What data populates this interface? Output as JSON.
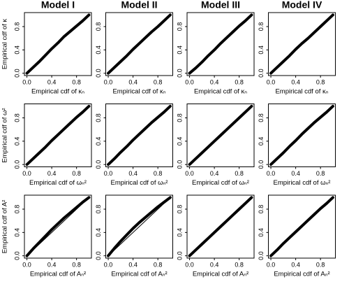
{
  "chart_data": [
    {
      "type": "line",
      "title": "Model I",
      "ylabel": "Empirical cdf of κ",
      "xlabel": "Empirical cdf of κₙ",
      "xlim": [
        -0.04,
        1.04
      ],
      "ylim": [
        -0.04,
        1.04
      ],
      "xticks": [
        {
          "value": 0,
          "label": "0.0"
        },
        0.4,
        0.8
      ],
      "yticks": [
        {
          "value": 0,
          "label": "0.0"
        },
        0.4,
        0.8
      ],
      "series": [
        {
          "color": "#000000",
          "linewidth": 4,
          "x": [
            0,
            0.1,
            0.2,
            0.3,
            0.4,
            0.5,
            0.6,
            0.7,
            0.8,
            0.9,
            1
          ],
          "values": [
            0,
            0.1,
            0.2,
            0.31,
            0.42,
            0.52,
            0.63,
            0.72,
            0.81,
            0.9,
            1
          ]
        }
      ]
    },
    {
      "type": "line",
      "title": "Model II",
      "xlabel": "Empirical cdf of κₙ",
      "xlim": [
        -0.04,
        1.04
      ],
      "ylim": [
        -0.04,
        1.04
      ],
      "xticks": [
        {
          "value": 0,
          "label": "0.0"
        },
        0.4,
        0.8
      ],
      "yticks": [
        {
          "value": 0,
          "label": "0.0"
        },
        0.4,
        0.8
      ],
      "series": [
        {
          "color": "#000000",
          "linewidth": 4,
          "x": [
            0,
            0.1,
            0.2,
            0.3,
            0.4,
            0.5,
            0.6,
            0.7,
            0.8,
            0.9,
            1
          ],
          "values": [
            0,
            0.1,
            0.2,
            0.3,
            0.41,
            0.51,
            0.61,
            0.71,
            0.8,
            0.9,
            1
          ]
        }
      ]
    },
    {
      "type": "line",
      "title": "Model III",
      "xlabel": "Empirical cdf of κₙ",
      "xlim": [
        -0.04,
        1.04
      ],
      "ylim": [
        -0.04,
        1.04
      ],
      "xticks": [
        {
          "value": 0,
          "label": "0.0"
        },
        0.4,
        0.8
      ],
      "yticks": [
        {
          "value": 0,
          "label": "0.0"
        },
        0.4,
        0.8
      ],
      "series": [
        {
          "color": "#000000",
          "linewidth": 4,
          "x": [
            0,
            0.1,
            0.2,
            0.3,
            0.4,
            0.5,
            0.6,
            0.7,
            0.8,
            0.9,
            1
          ],
          "values": [
            0,
            0.09,
            0.19,
            0.3,
            0.4,
            0.51,
            0.61,
            0.71,
            0.81,
            0.9,
            1
          ]
        }
      ]
    },
    {
      "type": "line",
      "title": "Model IV",
      "xlabel": "Empirical cdf of κₙ",
      "xlim": [
        -0.04,
        1.04
      ],
      "ylim": [
        -0.04,
        1.04
      ],
      "xticks": [
        {
          "value": 0,
          "label": "0.0"
        },
        0.4,
        0.8
      ],
      "yticks": [
        {
          "value": 0,
          "label": "0.0"
        },
        0.4,
        0.8
      ],
      "series": [
        {
          "color": "#000000",
          "linewidth": 4,
          "x": [
            0,
            0.1,
            0.2,
            0.3,
            0.4,
            0.5,
            0.6,
            0.7,
            0.8,
            0.9,
            1
          ],
          "values": [
            0,
            0.1,
            0.2,
            0.3,
            0.41,
            0.51,
            0.6,
            0.7,
            0.8,
            0.9,
            1
          ]
        }
      ]
    },
    {
      "type": "line",
      "ylabel": "Empirical cdf of ω²",
      "xlabel": "Empirical cdf of ωₙ²",
      "xlim": [
        -0.04,
        1.04
      ],
      "ylim": [
        -0.04,
        1.04
      ],
      "xticks": [
        {
          "value": 0,
          "label": "0.0"
        },
        0.4,
        0.8
      ],
      "yticks": [
        {
          "value": 0,
          "label": "0.0"
        },
        0.4,
        0.8
      ],
      "series": [
        {
          "color": "#000000",
          "linewidth": 4,
          "x": [
            0,
            0.1,
            0.2,
            0.3,
            0.4,
            0.5,
            0.6,
            0.7,
            0.8,
            0.9,
            1
          ],
          "values": [
            0,
            0.1,
            0.2,
            0.3,
            0.41,
            0.51,
            0.61,
            0.71,
            0.81,
            0.9,
            1
          ]
        }
      ]
    },
    {
      "type": "line",
      "xlabel": "Empirical cdf of ωₙ²",
      "xlim": [
        -0.04,
        1.04
      ],
      "ylim": [
        -0.04,
        1.04
      ],
      "xticks": [
        {
          "value": 0,
          "label": "0.0"
        },
        0.4,
        0.8
      ],
      "yticks": [
        {
          "value": 0,
          "label": "0.0"
        },
        0.4,
        0.8
      ],
      "series": [
        {
          "color": "#000000",
          "linewidth": 4,
          "x": [
            0,
            0.1,
            0.2,
            0.3,
            0.4,
            0.5,
            0.6,
            0.7,
            0.8,
            0.9,
            1
          ],
          "values": [
            0,
            0.1,
            0.21,
            0.31,
            0.42,
            0.52,
            0.62,
            0.72,
            0.81,
            0.9,
            1
          ]
        }
      ]
    },
    {
      "type": "line",
      "xlabel": "Empirical cdf of ωₙ²",
      "xlim": [
        -0.04,
        1.04
      ],
      "ylim": [
        -0.04,
        1.04
      ],
      "xticks": [
        {
          "value": 0,
          "label": "0.0"
        },
        0.4,
        0.8
      ],
      "yticks": [
        {
          "value": 0,
          "label": "0.0"
        },
        0.4,
        0.8
      ],
      "series": [
        {
          "color": "#000000",
          "linewidth": 4,
          "x": [
            0,
            0.1,
            0.2,
            0.3,
            0.4,
            0.5,
            0.6,
            0.7,
            0.8,
            0.9,
            1
          ],
          "values": [
            0,
            0.1,
            0.2,
            0.3,
            0.4,
            0.5,
            0.6,
            0.7,
            0.8,
            0.9,
            1
          ]
        }
      ]
    },
    {
      "type": "line",
      "xlabel": "Empirical cdf of ωₙ²",
      "xlim": [
        -0.04,
        1.04
      ],
      "ylim": [
        -0.04,
        1.04
      ],
      "xticks": [
        {
          "value": 0,
          "label": "0.0"
        },
        0.4,
        0.8
      ],
      "yticks": [
        {
          "value": 0,
          "label": "0.0"
        },
        0.4,
        0.8
      ],
      "series": [
        {
          "color": "#000000",
          "linewidth": 4,
          "x": [
            0,
            0.1,
            0.2,
            0.3,
            0.4,
            0.5,
            0.6,
            0.7,
            0.8,
            0.9,
            1
          ],
          "values": [
            0,
            0.1,
            0.2,
            0.31,
            0.41,
            0.52,
            0.62,
            0.72,
            0.81,
            0.9,
            1
          ]
        }
      ]
    },
    {
      "type": "line",
      "ylabel": "Empirical cdf of A²",
      "xlabel": "Empirical cdf of Aₙ²",
      "xlim": [
        -0.04,
        1.04
      ],
      "ylim": [
        -0.04,
        1.04
      ],
      "xticks": [
        {
          "value": 0,
          "label": "0.0"
        },
        0.4,
        0.8
      ],
      "yticks": [
        {
          "value": 0,
          "label": "0.0"
        },
        0.4,
        0.8
      ],
      "series": [
        {
          "color": "#000000",
          "linewidth": 1,
          "x": [
            0,
            1
          ],
          "values": [
            0,
            1
          ]
        },
        {
          "color": "#000000",
          "linewidth": 4,
          "x": [
            0,
            0.1,
            0.2,
            0.3,
            0.4,
            0.5,
            0.6,
            0.7,
            0.8,
            0.9,
            1
          ],
          "values": [
            0,
            0.12,
            0.23,
            0.34,
            0.45,
            0.55,
            0.65,
            0.74,
            0.83,
            0.92,
            1
          ]
        }
      ]
    },
    {
      "type": "line",
      "xlabel": "Empirical cdf of Aₙ²",
      "xlim": [
        -0.04,
        1.04
      ],
      "ylim": [
        -0.04,
        1.04
      ],
      "xticks": [
        {
          "value": 0,
          "label": "0.0"
        },
        0.4,
        0.8
      ],
      "yticks": [
        {
          "value": 0,
          "label": "0.0"
        },
        0.4,
        0.8
      ],
      "series": [
        {
          "color": "#000000",
          "linewidth": 1,
          "x": [
            0,
            1
          ],
          "values": [
            0,
            1
          ]
        },
        {
          "color": "#000000",
          "linewidth": 4,
          "x": [
            0,
            0.1,
            0.2,
            0.3,
            0.4,
            0.5,
            0.6,
            0.7,
            0.8,
            0.9,
            1
          ],
          "values": [
            0,
            0.13,
            0.25,
            0.36,
            0.47,
            0.57,
            0.66,
            0.75,
            0.84,
            0.92,
            1
          ]
        }
      ]
    },
    {
      "type": "line",
      "xlabel": "Empirical cdf of Aₙ²",
      "xlim": [
        -0.04,
        1.04
      ],
      "ylim": [
        -0.04,
        1.04
      ],
      "xticks": [
        {
          "value": 0,
          "label": "0.0"
        },
        0.4,
        0.8
      ],
      "yticks": [
        {
          "value": 0,
          "label": "0.0"
        },
        0.4,
        0.8
      ],
      "series": [
        {
          "color": "#000000",
          "linewidth": 4,
          "x": [
            0,
            0.1,
            0.2,
            0.3,
            0.4,
            0.5,
            0.6,
            0.7,
            0.8,
            0.9,
            1
          ],
          "values": [
            0,
            0.1,
            0.2,
            0.3,
            0.4,
            0.5,
            0.6,
            0.7,
            0.8,
            0.9,
            1
          ]
        }
      ]
    },
    {
      "type": "line",
      "xlabel": "Empirical cdf of Aₙ²",
      "xlim": [
        -0.04,
        1.04
      ],
      "ylim": [
        -0.04,
        1.04
      ],
      "xticks": [
        {
          "value": 0,
          "label": "0.0"
        },
        0.4,
        0.8
      ],
      "yticks": [
        {
          "value": 0,
          "label": "0.0"
        },
        0.4,
        0.8
      ],
      "series": [
        {
          "color": "#000000",
          "linewidth": 4,
          "x": [
            0,
            0.1,
            0.2,
            0.3,
            0.4,
            0.5,
            0.6,
            0.7,
            0.8,
            0.9,
            1
          ],
          "values": [
            0,
            0.1,
            0.21,
            0.31,
            0.41,
            0.51,
            0.61,
            0.71,
            0.81,
            0.9,
            1
          ]
        }
      ]
    }
  ]
}
